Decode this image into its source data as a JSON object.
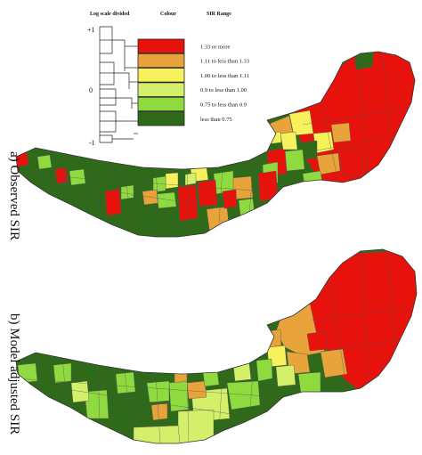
{
  "legend": {
    "header_scale": "Log scale divided",
    "header_colour": "Colour",
    "header_range": "SIR Range",
    "axis_top": "+1",
    "axis_mid": "0",
    "axis_bottom": "-1",
    "classes": [
      {
        "label": "1.33 or more",
        "color": "#e8120c"
      },
      {
        "label": "1.11 to less than 1.33",
        "color": "#e8a33a"
      },
      {
        "label": "1.00 to less than 1.11",
        "color": "#f7f25c"
      },
      {
        "label": "0.9 to less than 1.00",
        "color": "#d4f06a"
      },
      {
        "label": "0.75 to less than 0.9",
        "color": "#8fdb3f"
      },
      {
        "label": "less than 0.75",
        "color": "#2f6a1b"
      }
    ]
  },
  "maps": [
    {
      "label": "a) Observed SIR"
    },
    {
      "label": "b) Model adjusted SIR"
    }
  ]
}
